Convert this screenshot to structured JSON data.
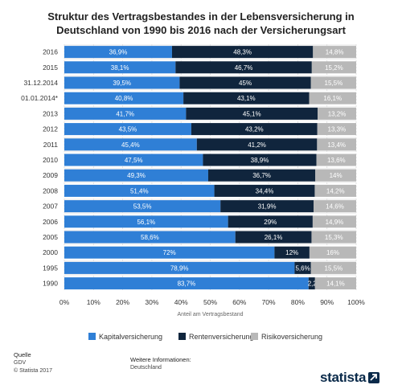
{
  "title": "Struktur des Vertragsbestandes in der Lebensversicherung in Deutschland von 1990 bis 2016 nach der Versicherungsart",
  "chart_data": {
    "type": "bar",
    "orientation": "horizontal",
    "stacked": true,
    "categories": [
      "2016",
      "2015",
      "31.12.2014",
      "01.01.2014*",
      "2013",
      "2012",
      "2011",
      "2010",
      "2009",
      "2008",
      "2007",
      "2006",
      "2005",
      "2000",
      "1995",
      "1990"
    ],
    "series": [
      {
        "name": "Kapitalversicherung",
        "color": "#2f7fd6",
        "values": [
          36.9,
          38.1,
          39.5,
          40.8,
          41.7,
          43.5,
          45.4,
          47.5,
          49.3,
          51.4,
          53.5,
          56.1,
          58.6,
          72,
          78.9,
          83.7
        ],
        "labels": [
          "36,9%",
          "38,1%",
          "39,5%",
          "40,8%",
          "41,7%",
          "43,5%",
          "45,4%",
          "47,5%",
          "49,3%",
          "51,4%",
          "53,5%",
          "56,1%",
          "58,6%",
          "72%",
          "78,9%",
          "83,7%"
        ]
      },
      {
        "name": "Rentenversicherung",
        "color": "#10253d",
        "values": [
          48.3,
          46.7,
          45,
          43.1,
          45.1,
          43.2,
          41.2,
          38.9,
          36.7,
          34.4,
          31.9,
          29,
          26.1,
          12,
          5.6,
          2.2
        ],
        "labels": [
          "48,3%",
          "46,7%",
          "45%",
          "43,1%",
          "45,1%",
          "43,2%",
          "41,2%",
          "38,9%",
          "36,7%",
          "34,4%",
          "31,9%",
          "29%",
          "26,1%",
          "12%",
          "5,6%",
          "2,2%"
        ]
      },
      {
        "name": "Risikoversicherung",
        "color": "#b8b8b8",
        "values": [
          14.8,
          15.2,
          15.5,
          16.1,
          13.2,
          13.3,
          13.4,
          13.6,
          14,
          14.2,
          14.6,
          14.9,
          15.3,
          16,
          15.5,
          14.1
        ],
        "labels": [
          "14,8%",
          "15,2%",
          "15,5%",
          "16,1%",
          "13,2%",
          "13,3%",
          "13,4%",
          "13,6%",
          "14%",
          "14,2%",
          "14,6%",
          "14,9%",
          "15,3%",
          "16%",
          "15,5%",
          "14,1%"
        ]
      }
    ],
    "xlabel": "Anteil am Vertragsbestand",
    "xlim": [
      0,
      100
    ],
    "xticks": [
      "0%",
      "10%",
      "20%",
      "30%",
      "40%",
      "50%",
      "60%",
      "70%",
      "80%",
      "90%",
      "100%"
    ],
    "grid": true,
    "legend": "bottom"
  },
  "footer": {
    "source_head": "Quelle",
    "source": "GDV",
    "copyright": "© Statista 2017",
    "info_head": "Weitere Informationen:",
    "info": "Deutschland"
  },
  "logo": {
    "text": "statista",
    "icon": "statista-arrow-icon"
  }
}
